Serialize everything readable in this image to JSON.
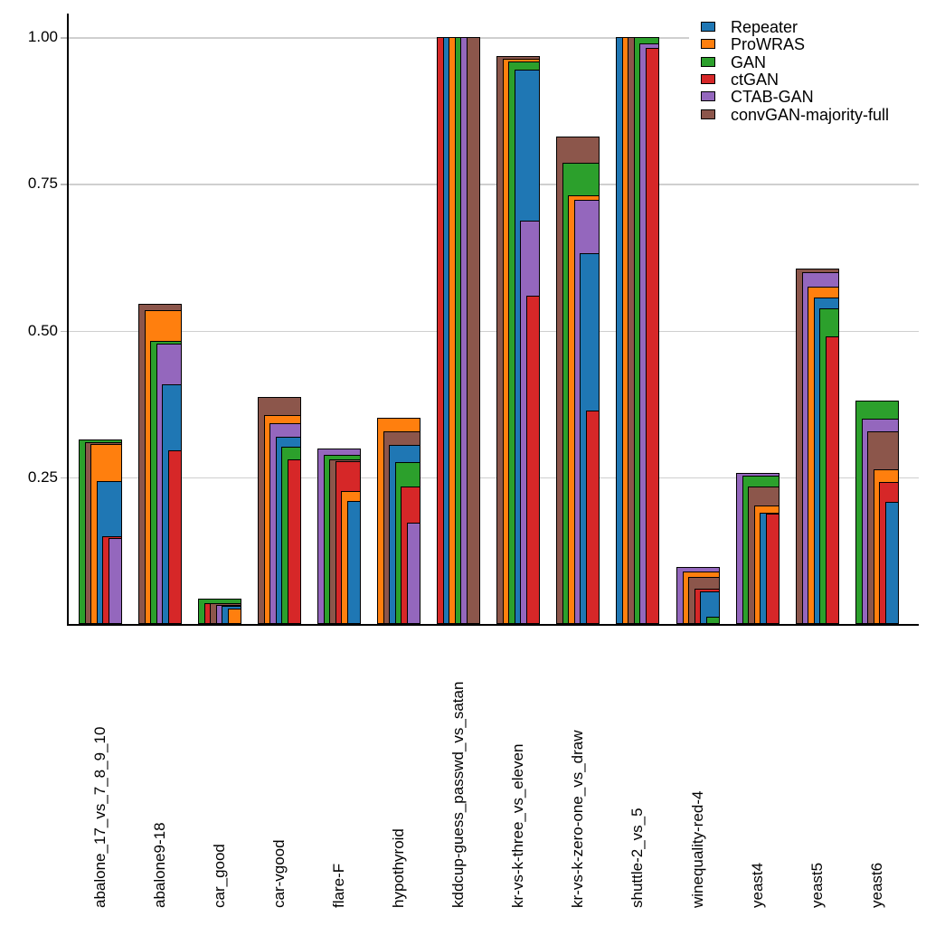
{
  "chart_data": {
    "type": "bar",
    "variant": "nested-overlap-right-aligned",
    "title": "",
    "xlabel": "",
    "ylabel": "",
    "ylim": [
      0,
      1.05
    ],
    "grid": "horizontal",
    "legend_position": "top-right",
    "y_ticks": [
      {
        "value": 1.0,
        "label": "1.00"
      },
      {
        "value": 0.75,
        "label": "0.75"
      },
      {
        "value": 0.5,
        "label": "0.50"
      },
      {
        "value": 0.25,
        "label": "0.25"
      }
    ],
    "series": [
      "Repeater",
      "ProWRAS",
      "GAN",
      "ctGAN",
      "CTAB-GAN",
      "convGAN-majority-full"
    ],
    "series_colors": {
      "Repeater": "#1f77b4",
      "ProWRAS": "#ff7f0e",
      "GAN": "#2ca02c",
      "ctGAN": "#d62728",
      "CTAB-GAN": "#9467bd",
      "convGAN-majority-full": "#8c564b"
    },
    "categories": [
      "abalone_17_vs_7_8_9_10",
      "abalone9-18",
      "car_good",
      "car-vgood",
      "flare-F",
      "hypothyroid",
      "kddcup-guess_passwd_vs_satan",
      "kr-vs-k-three_vs_eleven",
      "kr-vs-k-zero-one_vs_draw",
      "shuttle-2_vs_5",
      "winequality-red-4",
      "yeast4",
      "yeast5",
      "yeast6"
    ],
    "groups": [
      {
        "category": "abalone_17_vs_7_8_9_10",
        "bars": [
          {
            "series": "GAN",
            "value": 0.315
          },
          {
            "series": "convGAN-majority-full",
            "value": 0.309
          },
          {
            "series": "ProWRAS",
            "value": 0.306
          },
          {
            "series": "Repeater",
            "value": 0.243
          },
          {
            "series": "ctGAN",
            "value": 0.149
          },
          {
            "series": "CTAB-GAN",
            "value": 0.147
          }
        ]
      },
      {
        "category": "abalone9-18",
        "bars": [
          {
            "series": "convGAN-majority-full",
            "value": 0.545
          },
          {
            "series": "ProWRAS",
            "value": 0.535
          },
          {
            "series": "GAN",
            "value": 0.482
          },
          {
            "series": "CTAB-GAN",
            "value": 0.478
          },
          {
            "series": "Repeater",
            "value": 0.408
          },
          {
            "series": "ctGAN",
            "value": 0.296
          }
        ]
      },
      {
        "category": "car_good",
        "bars": [
          {
            "series": "GAN",
            "value": 0.043
          },
          {
            "series": "ctGAN",
            "value": 0.036
          },
          {
            "series": "convGAN-majority-full",
            "value": 0.035
          },
          {
            "series": "CTAB-GAN",
            "value": 0.033
          },
          {
            "series": "Repeater",
            "value": 0.031
          },
          {
            "series": "ProWRAS",
            "value": 0.026
          }
        ]
      },
      {
        "category": "car-vgood",
        "bars": [
          {
            "series": "convGAN-majority-full",
            "value": 0.387
          },
          {
            "series": "ProWRAS",
            "value": 0.356
          },
          {
            "series": "CTAB-GAN",
            "value": 0.342
          },
          {
            "series": "Repeater",
            "value": 0.319
          },
          {
            "series": "GAN",
            "value": 0.302
          },
          {
            "series": "ctGAN",
            "value": 0.28
          }
        ]
      },
      {
        "category": "flare-F",
        "bars": [
          {
            "series": "CTAB-GAN",
            "value": 0.299
          },
          {
            "series": "GAN",
            "value": 0.288
          },
          {
            "series": "convGAN-majority-full",
            "value": 0.28
          },
          {
            "series": "ctGAN",
            "value": 0.277
          },
          {
            "series": "ProWRAS",
            "value": 0.226
          },
          {
            "series": "Repeater",
            "value": 0.21
          }
        ]
      },
      {
        "category": "hypothyroid",
        "bars": [
          {
            "series": "ProWRAS",
            "value": 0.352
          },
          {
            "series": "convGAN-majority-full",
            "value": 0.328
          },
          {
            "series": "Repeater",
            "value": 0.305
          },
          {
            "series": "GAN",
            "value": 0.276
          },
          {
            "series": "ctGAN",
            "value": 0.234
          },
          {
            "series": "CTAB-GAN",
            "value": 0.173
          }
        ]
      },
      {
        "category": "kddcup-guess_passwd_vs_satan",
        "bars": [
          {
            "series": "ctGAN",
            "value": 1.0
          },
          {
            "series": "Repeater",
            "value": 1.0
          },
          {
            "series": "ProWRAS",
            "value": 1.0
          },
          {
            "series": "GAN",
            "value": 1.0
          },
          {
            "series": "CTAB-GAN",
            "value": 1.0
          },
          {
            "series": "convGAN-majority-full",
            "value": 1.0
          }
        ]
      },
      {
        "category": "kr-vs-k-three_vs_eleven",
        "bars": [
          {
            "series": "convGAN-majority-full",
            "value": 0.968
          },
          {
            "series": "ProWRAS",
            "value": 0.963
          },
          {
            "series": "GAN",
            "value": 0.958
          },
          {
            "series": "Repeater",
            "value": 0.944
          },
          {
            "series": "CTAB-GAN",
            "value": 0.687
          },
          {
            "series": "ctGAN",
            "value": 0.559
          }
        ]
      },
      {
        "category": "kr-vs-k-zero-one_vs_draw",
        "bars": [
          {
            "series": "convGAN-majority-full",
            "value": 0.83
          },
          {
            "series": "GAN",
            "value": 0.786
          },
          {
            "series": "ProWRAS",
            "value": 0.731
          },
          {
            "series": "CTAB-GAN",
            "value": 0.723
          },
          {
            "series": "Repeater",
            "value": 0.632
          },
          {
            "series": "ctGAN",
            "value": 0.364
          }
        ]
      },
      {
        "category": "shuttle-2_vs_5",
        "bars": [
          {
            "series": "Repeater",
            "value": 1.0
          },
          {
            "series": "ProWRAS",
            "value": 1.0
          },
          {
            "series": "convGAN-majority-full",
            "value": 1.0
          },
          {
            "series": "GAN",
            "value": 1.0
          },
          {
            "series": "CTAB-GAN",
            "value": 0.989
          },
          {
            "series": "ctGAN",
            "value": 0.981
          }
        ]
      },
      {
        "category": "winequality-red-4",
        "bars": [
          {
            "series": "CTAB-GAN",
            "value": 0.097
          },
          {
            "series": "ProWRAS",
            "value": 0.089
          },
          {
            "series": "convGAN-majority-full",
            "value": 0.08
          },
          {
            "series": "ctGAN",
            "value": 0.06
          },
          {
            "series": "Repeater",
            "value": 0.055
          },
          {
            "series": "GAN",
            "value": 0.012
          }
        ]
      },
      {
        "category": "yeast4",
        "bars": [
          {
            "series": "CTAB-GAN",
            "value": 0.257
          },
          {
            "series": "GAN",
            "value": 0.252
          },
          {
            "series": "convGAN-majority-full",
            "value": 0.234
          },
          {
            "series": "ProWRAS",
            "value": 0.202
          },
          {
            "series": "Repeater",
            "value": 0.19
          },
          {
            "series": "ctGAN",
            "value": 0.188
          }
        ]
      },
      {
        "category": "yeast5",
        "bars": [
          {
            "series": "convGAN-majority-full",
            "value": 0.606
          },
          {
            "series": "CTAB-GAN",
            "value": 0.599
          },
          {
            "series": "ProWRAS",
            "value": 0.575
          },
          {
            "series": "Repeater",
            "value": 0.556
          },
          {
            "series": "GAN",
            "value": 0.538
          },
          {
            "series": "ctGAN",
            "value": 0.49
          }
        ]
      },
      {
        "category": "yeast6",
        "bars": [
          {
            "series": "GAN",
            "value": 0.381
          },
          {
            "series": "CTAB-GAN",
            "value": 0.35
          },
          {
            "series": "convGAN-majority-full",
            "value": 0.328
          },
          {
            "series": "ProWRAS",
            "value": 0.263
          },
          {
            "series": "ctGAN",
            "value": 0.242
          },
          {
            "series": "Repeater",
            "value": 0.208
          }
        ]
      }
    ]
  },
  "legend": {
    "items": [
      {
        "label": "Repeater",
        "color": "#1f77b4"
      },
      {
        "label": "ProWRAS",
        "color": "#ff7f0e"
      },
      {
        "label": "GAN",
        "color": "#2ca02c"
      },
      {
        "label": "ctGAN",
        "color": "#d62728"
      },
      {
        "label": "CTAB-GAN",
        "color": "#9467bd"
      },
      {
        "label": "convGAN-majority-full",
        "color": "#8c564b"
      }
    ]
  }
}
